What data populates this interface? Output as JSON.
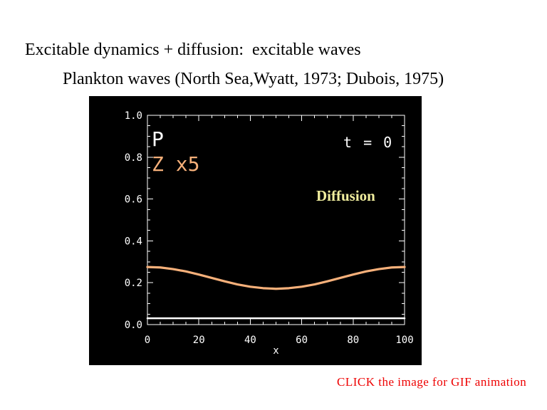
{
  "slide": {
    "title": "Excitable dynamics + diffusion:  excitable waves",
    "title_color": "#000000",
    "subtitle": "Plankton waves (North Sea,Wyatt, 1973; Dubois, 1975)",
    "subtitle_color": "#000000",
    "footer_note": "CLICK the image for GIF animation",
    "footer_note_color": "#ee0000"
  },
  "plot": {
    "p_label": "P",
    "z_label": "Z x5",
    "time_label": "t = 0",
    "region_label": "Diffusion",
    "colors": {
      "background": "#000000",
      "axis": "#ffffff",
      "p_series": "#ffffff",
      "z_series": "#f6b07a",
      "diffusion_text": "#f1ee9e",
      "time_text": "#ffffff"
    }
  },
  "chart_data": {
    "type": "line",
    "title": "",
    "xlabel": "x",
    "ylabel": "",
    "xlim": [
      0,
      100
    ],
    "ylim": [
      0,
      1.0
    ],
    "grid": false,
    "axis_color": "#ffffff",
    "x_major_ticks": [
      0,
      20,
      40,
      60,
      80,
      100
    ],
    "x_tick_labels": [
      "0",
      "20",
      "40",
      "60",
      "80",
      "100"
    ],
    "x_minor_step": 5,
    "y_major_ticks": [
      0.0,
      0.2,
      0.4,
      0.6,
      0.8,
      1.0
    ],
    "y_tick_labels": [
      "0.0",
      "0.2",
      "0.4",
      "0.6",
      "0.8",
      "1.0"
    ],
    "y_minor_step": 0.05,
    "annotations": [
      {
        "text": "t = 0",
        "x": 70,
        "y": 0.84
      },
      {
        "text": "Diffusion",
        "x": 68,
        "y": 0.62
      }
    ],
    "x": [
      0,
      5,
      10,
      15,
      20,
      25,
      30,
      35,
      40,
      45,
      50,
      55,
      60,
      65,
      70,
      75,
      80,
      85,
      90,
      95,
      100
    ],
    "series": [
      {
        "name": "P",
        "color": "#ffffff",
        "width": 2.5,
        "values": [
          0.03,
          0.03,
          0.03,
          0.03,
          0.03,
          0.03,
          0.03,
          0.03,
          0.03,
          0.03,
          0.03,
          0.03,
          0.03,
          0.03,
          0.03,
          0.03,
          0.03,
          0.03,
          0.03,
          0.03,
          0.03
        ]
      },
      {
        "name": "Z x5",
        "color": "#f6b07a",
        "width": 3.2,
        "values": [
          0.275,
          0.273,
          0.265,
          0.254,
          0.239,
          0.223,
          0.207,
          0.192,
          0.181,
          0.174,
          0.171,
          0.174,
          0.181,
          0.192,
          0.207,
          0.223,
          0.239,
          0.254,
          0.265,
          0.273,
          0.275
        ]
      }
    ]
  }
}
